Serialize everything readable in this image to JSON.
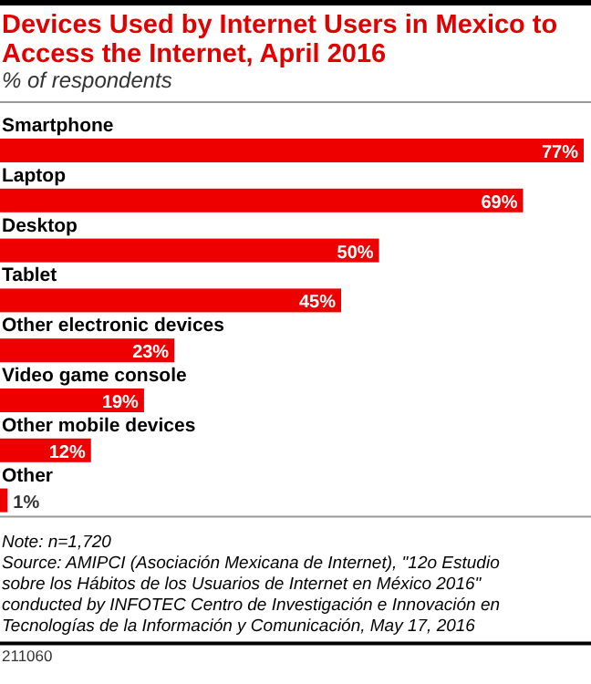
{
  "chart_data": {
    "type": "bar",
    "orientation": "horizontal",
    "title": "Devices Used by Internet Users in Mexico to Access the Internet, April 2016",
    "subtitle": "% of respondents",
    "categories": [
      "Smartphone",
      "Laptop",
      "Desktop",
      "Tablet",
      "Other electronic devices",
      "Video game console",
      "Other mobile devices",
      "Other"
    ],
    "values": [
      77,
      69,
      50,
      45,
      23,
      19,
      12,
      1
    ],
    "value_labels": [
      "77%",
      "69%",
      "50%",
      "45%",
      "23%",
      "19%",
      "12%",
      "1%"
    ],
    "color": "#ee0000",
    "annotations": [
      "Note: n=1,720",
      "Source: AMIPCI (Asociación Mexicana de Internet), \"12o Estudio sobre los Hábitos de los Usuarios de Internet en México 2016\" conducted by INFOTEC Centro de Investigación e Innovación en Tecnologías de la Información y Comunicación, May 17, 2016",
      "211060"
    ]
  }
}
